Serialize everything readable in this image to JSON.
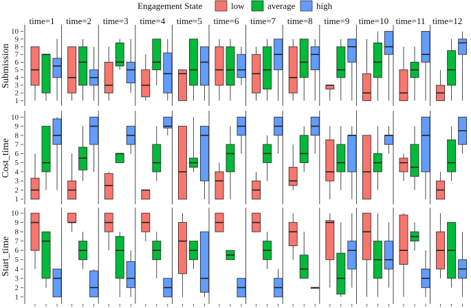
{
  "chart_data": {
    "type": "boxplot",
    "legend": {
      "title": "Engagement State",
      "entries": [
        {
          "name": "low",
          "color": "#F8766D"
        },
        {
          "name": "average",
          "color": "#00BA38"
        },
        {
          "name": "high",
          "color": "#619CFF"
        }
      ],
      "position": "top"
    },
    "facet_columns": [
      "time=1",
      "time=2",
      "time=3",
      "time=4",
      "time=5",
      "time=6",
      "time=7",
      "time=8",
      "time=9",
      "time=10",
      "time=11",
      "time=12"
    ],
    "rows": [
      {
        "name": "Submission",
        "ylim": [
          0.5,
          10.5
        ],
        "yticks": [
          1,
          2,
          3,
          4,
          5,
          6,
          7,
          8,
          9,
          10
        ],
        "boxes": [
          [
            [
              1,
              3,
              5,
              8,
              8
            ],
            [
              1,
              2,
              7,
              7,
              7
            ],
            [
              1,
              4,
              5.5,
              6.5,
              9
            ]
          ],
          [
            [
              1,
              2,
              4,
              8,
              8
            ],
            [
              1,
              3,
              6,
              8,
              9
            ],
            [
              1,
              3,
              4,
              5,
              8
            ]
          ],
          [
            [
              1,
              2,
              3,
              6,
              8
            ],
            [
              5,
              5.5,
              6,
              8.5,
              9
            ],
            [
              2,
              3.3,
              5,
              6,
              9
            ]
          ],
          [
            [
              1,
              1.5,
              3,
              5,
              7
            ],
            [
              3,
              5,
              6,
              9,
              9
            ],
            [
              1,
              2,
              4.5,
              7.2,
              9
            ]
          ],
          [
            [
              1,
              1,
              4.5,
              5,
              5
            ],
            [
              1,
              3,
              5,
              9,
              9
            ],
            [
              1,
              3,
              6,
              8,
              8
            ]
          ],
          [
            [
              1,
              3,
              5,
              8,
              9
            ],
            [
              1,
              3,
              5,
              8,
              9
            ],
            [
              3,
              4,
              5,
              7,
              8
            ]
          ],
          [
            [
              1,
              2,
              4.5,
              7,
              8
            ],
            [
              1,
              2.5,
              5,
              8,
              9
            ],
            [
              1,
              5,
              7,
              9,
              9
            ]
          ],
          [
            [
              1,
              2,
              4,
              8,
              9
            ],
            [
              1,
              4,
              6,
              9,
              9
            ],
            [
              1,
              5,
              7,
              8,
              9
            ]
          ],
          [
            [
              1,
              2.5,
              3,
              3,
              3
            ],
            [
              1,
              4,
              5,
              8,
              9
            ],
            [
              1,
              6,
              8,
              9,
              9
            ]
          ],
          [
            [
              1,
              1,
              2,
              4.5,
              9
            ],
            [
              1,
              4,
              6,
              8.5,
              10
            ],
            [
              1,
              7,
              8,
              10,
              10
            ]
          ],
          [
            [
              1,
              1,
              2,
              5,
              8
            ],
            [
              1,
              4,
              5,
              6,
              8
            ],
            [
              1,
              6,
              7,
              10,
              10
            ]
          ],
          [
            [
              1,
              1,
              2,
              3,
              5
            ],
            [
              1,
              3,
              5,
              7.5,
              9
            ],
            [
              1,
              7,
              8.5,
              9,
              10
            ]
          ]
        ]
      },
      {
        "name": "Cost_time",
        "ylim": [
          0.6,
          10.4
        ],
        "yticks": [
          1,
          2,
          3,
          4,
          5,
          6,
          7,
          8,
          9,
          10
        ],
        "boxes": [
          [
            [
              1,
              1,
              2,
              3.3,
              6
            ],
            [
              2,
              4,
              5,
              9,
              9
            ],
            [
              2,
              7,
              8,
              9.8,
              10
            ]
          ],
          [
            [
              1,
              1,
              2,
              3,
              6
            ],
            [
              3,
              4.2,
              5.5,
              6.7,
              9
            ],
            [
              4,
              7,
              9,
              10,
              10
            ]
          ],
          [
            [
              1,
              1,
              2.5,
              3.8,
              4
            ],
            [
              5,
              5,
              6,
              6,
              6
            ],
            [
              6,
              7,
              8,
              9,
              9
            ]
          ],
          [
            [
              1,
              1,
              2,
              2,
              2
            ],
            [
              3,
              4,
              5,
              7,
              9
            ],
            [
              8,
              8.8,
              9,
              10,
              10
            ]
          ],
          [
            [
              1,
              1,
              4,
              9,
              9
            ],
            [
              4,
              4.5,
              5,
              5.5,
              10
            ],
            [
              1,
              3,
              8,
              9,
              9
            ]
          ],
          [
            [
              1,
              1,
              3,
              4,
              5
            ],
            [
              1,
              4,
              6,
              7,
              9
            ],
            [
              6,
              8,
              9,
              10,
              10
            ]
          ],
          [
            [
              1,
              1,
              2,
              3,
              4
            ],
            [
              3,
              5,
              6,
              7,
              8
            ],
            [
              6,
              8,
              9,
              10,
              10
            ]
          ],
          [
            [
              2,
              2.5,
              3,
              4.5,
              7
            ],
            [
              4,
              5,
              6,
              8,
              9
            ],
            [
              6,
              8,
              9,
              10,
              10
            ]
          ],
          [
            [
              1,
              3,
              4,
              7.5,
              9
            ],
            [
              2,
              4,
              5,
              7,
              9
            ],
            [
              1,
              4,
              8,
              8,
              9
            ]
          ],
          [
            [
              1,
              1,
              4,
              8,
              8
            ],
            [
              2,
              4,
              5,
              6,
              9
            ],
            [
              6,
              7,
              8,
              8,
              9
            ]
          ],
          [
            [
              3,
              4,
              5,
              5.5,
              6
            ],
            [
              2,
              3.5,
              4.5,
              7,
              9
            ],
            [
              1,
              4,
              8,
              10,
              10
            ]
          ],
          [
            [
              1,
              1,
              2,
              3,
              4
            ],
            [
              3,
              4,
              5,
              7.5,
              9
            ],
            [
              6,
              7,
              8.5,
              10,
              10
            ]
          ]
        ]
      },
      {
        "name": "Start_time",
        "ylim": [
          0.4,
          10.3
        ],
        "yticks": [
          1,
          2,
          3,
          4,
          5,
          6,
          7,
          8,
          9,
          10
        ],
        "boxes": [
          [
            [
              4,
              6,
              9,
              10,
              10
            ],
            [
              2,
              3,
              7,
              8,
              8
            ],
            [
              1,
              1,
              3,
              4,
              4
            ]
          ],
          [
            [
              8,
              9,
              9,
              10,
              10
            ],
            [
              4,
              5,
              6,
              7,
              8
            ],
            [
              1,
              1,
              2,
              3.8,
              4
            ]
          ],
          [
            [
              6,
              8,
              9,
              10,
              10
            ],
            [
              1,
              3,
              6,
              7.5,
              8
            ],
            [
              1,
              2,
              3,
              4.8,
              6
            ]
          ],
          [
            [
              7,
              8,
              9,
              10,
              10
            ],
            [
              3,
              5,
              6,
              7,
              8
            ],
            [
              1,
              1,
              2,
              3,
              3
            ]
          ],
          [
            [
              1,
              3.5,
              7,
              9,
              10
            ],
            [
              4,
              5,
              6,
              7,
              7
            ],
            [
              1,
              1.5,
              3,
              8,
              8
            ]
          ],
          [
            [
              8,
              8,
              9,
              10,
              10
            ],
            [
              5,
              5,
              5.5,
              6,
              6
            ],
            [
              1,
              1,
              2,
              3,
              3
            ]
          ],
          [
            [
              8,
              8,
              9,
              10,
              10
            ],
            [
              4,
              5,
              6,
              7,
              8
            ],
            [
              1,
              1,
              2,
              3,
              4
            ]
          ],
          [
            [
              5,
              6.5,
              8,
              9,
              10
            ],
            [
              3,
              3,
              4,
              5.5,
              8
            ],
            [
              2,
              2,
              2,
              2,
              2
            ]
          ],
          [
            [
              2,
              5,
              9,
              9.2,
              10
            ],
            [
              1,
              1.3,
              3,
              5.7,
              9
            ],
            [
              2,
              4,
              6,
              7,
              10
            ]
          ],
          [
            [
              1,
              5,
              8,
              10,
              10
            ],
            [
              1,
              3,
              5,
              7,
              10
            ],
            [
              2,
              4,
              5,
              7,
              9
            ]
          ],
          [
            [
              1,
              4.5,
              6,
              9.8,
              10
            ],
            [
              6,
              7,
              7.5,
              8,
              9
            ],
            [
              1,
              2,
              3,
              4,
              6
            ]
          ],
          [
            [
              3,
              4,
              6,
              8,
              10
            ],
            [
              2,
              3,
              6,
              9,
              9
            ],
            [
              1,
              3,
              4,
              5,
              8
            ]
          ]
        ]
      }
    ]
  }
}
